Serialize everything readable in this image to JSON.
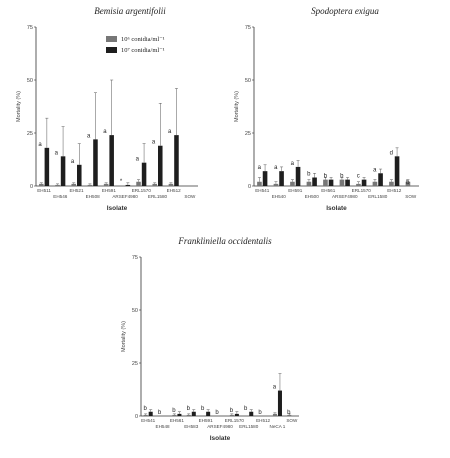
{
  "chart_data": [
    {
      "type": "bar",
      "title": "Bemisia argentifolii",
      "xlabel": "Isolate",
      "ylabel": "Mortality (%)",
      "ylim": [
        0,
        75
      ],
      "yticks": [
        "0",
        "25",
        "50",
        "75"
      ],
      "legend": [
        "10⁶ conidia/ml⁻¹",
        "10⁷ conidia/ml⁻¹"
      ],
      "categories": [
        "EH511",
        "EH546",
        "EH521",
        "EH508",
        "EH591",
        "ARSEF4980",
        "ERL1570",
        "ERL1580",
        "EH512",
        "SOW"
      ],
      "label_row": [
        "top",
        "bottom",
        "top",
        "bottom",
        "top",
        "bottom",
        "top",
        "bottom",
        "top",
        "bottom"
      ],
      "series": [
        {
          "values": [
            1,
            0.5,
            1,
            0.5,
            1,
            0,
            2,
            1,
            1,
            0
          ],
          "errors": [
            0.5,
            0.5,
            0.5,
            0.5,
            0.5,
            0,
            1,
            0.5,
            0.5,
            0
          ],
          "color": "#777777"
        },
        {
          "values": [
            18,
            14,
            10,
            22,
            24,
            0.5,
            11,
            19,
            24,
            0
          ],
          "errors": [
            14,
            14,
            10,
            22,
            26,
            1,
            9,
            20,
            22,
            0
          ],
          "color": "#1e1e1e"
        }
      ],
      "letters": [
        "a",
        "a",
        "a",
        "a",
        "a",
        "*",
        "a",
        "a",
        "a",
        ""
      ]
    },
    {
      "type": "bar",
      "title": "Spodoptera exigua",
      "xlabel": "Isolate",
      "ylabel": "Mortality (%)",
      "ylim": [
        0,
        75
      ],
      "yticks": [
        "0",
        "25",
        "50",
        "75"
      ],
      "categories": [
        "EH541",
        "EH540",
        "EH591",
        "EH500",
        "EH561",
        "ARSEF4980",
        "ERL1570",
        "ERL1580",
        "EH512",
        "SOW"
      ],
      "label_row": [
        "top",
        "bottom",
        "top",
        "bottom",
        "top",
        "bottom",
        "top",
        "bottom",
        "top",
        "bottom"
      ],
      "series": [
        {
          "values": [
            2,
            1,
            2,
            2,
            3,
            3,
            1,
            2,
            2,
            2
          ],
          "errors": [
            2,
            1,
            1,
            1,
            1,
            1,
            1,
            1,
            1,
            1
          ],
          "color": "#777777"
        },
        {
          "values": [
            7,
            7,
            9,
            4,
            3,
            3,
            3,
            6,
            14,
            0
          ],
          "errors": [
            3,
            2,
            3,
            2,
            1,
            1,
            1,
            2,
            4,
            0
          ],
          "color": "#1e1e1e"
        }
      ],
      "letters": [
        "a",
        "a",
        "a",
        "b",
        "b",
        "b",
        "c",
        "a",
        "d",
        "b"
      ]
    },
    {
      "type": "bar",
      "title": "Frankliniella occidentalis",
      "xlabel": "Isolate",
      "ylabel": "Mortality (%)",
      "ylim": [
        0,
        75
      ],
      "yticks": [
        "0",
        "25",
        "50",
        "75"
      ],
      "categories": [
        "EH541",
        "EH548",
        "EH561",
        "EH583",
        "EH591",
        "ARSEF4980",
        "ERL1570",
        "ERL1580",
        "EH512",
        "NeCA 1",
        "SOW"
      ],
      "label_row": [
        "top",
        "bottom",
        "top",
        "bottom",
        "top",
        "bottom",
        "top",
        "bottom",
        "top",
        "bottom",
        "top"
      ],
      "series": [
        {
          "values": [
            0.5,
            0,
            0.5,
            0.5,
            0,
            0,
            0.5,
            0,
            0,
            1,
            0.5
          ],
          "errors": [
            0.5,
            0,
            0.5,
            0.5,
            0,
            0,
            0.5,
            0,
            0,
            0.5,
            0.5
          ],
          "color": "#777777"
        },
        {
          "values": [
            2,
            0,
            1,
            2,
            2,
            0,
            1,
            2,
            0,
            12,
            0
          ],
          "errors": [
            1,
            0,
            1,
            1,
            1,
            0,
            1,
            1,
            0,
            8,
            0
          ],
          "color": "#1e1e1e"
        }
      ],
      "letters": [
        "b",
        "b",
        "b",
        "b",
        "b",
        "b",
        "b",
        "b",
        "b",
        "a",
        "b"
      ]
    }
  ]
}
